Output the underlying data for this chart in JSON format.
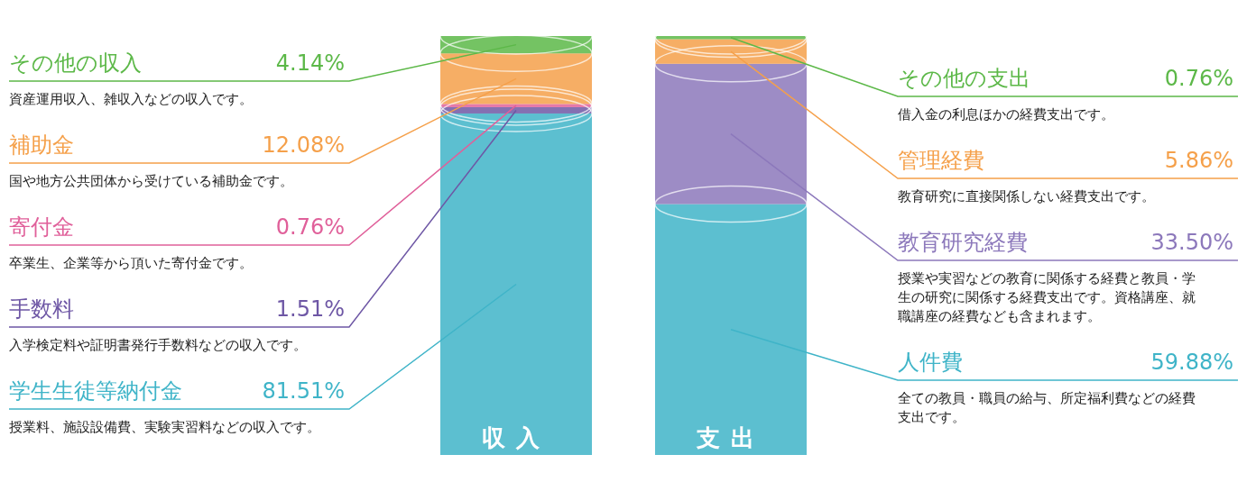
{
  "chart_data": [
    {
      "type": "bar",
      "stacked": true,
      "categories": [
        "収入"
      ],
      "legend": "left",
      "series": [
        {
          "name": "学生生徒等納付金",
          "color": "#3fb4c8",
          "values": [
            81.51
          ],
          "value_labels": [
            "81.51%"
          ]
        },
        {
          "name": "手数料",
          "color": "#6e57a5",
          "values": [
            1.51
          ],
          "value_labels": [
            "1.51%"
          ]
        },
        {
          "name": "寄付金",
          "color": "#e0609a",
          "values": [
            0.76
          ],
          "value_labels": [
            "0.76%"
          ]
        },
        {
          "name": "補助金",
          "color": "#f5a04a",
          "values": [
            12.08
          ],
          "value_labels": [
            "12.08%"
          ]
        },
        {
          "name": "その他の収入",
          "color": "#5cb848",
          "values": [
            4.14
          ],
          "value_labels": [
            "4.14%"
          ]
        }
      ],
      "annotations": [
        "資産運用収入、雑収入などの収入です。",
        "国や地方公共団体から受けている補助金です。",
        "卒業生、企業等から頂いた寄付金です。",
        "入学検定料や証明書発行手数料などの収入です。",
        "授業料、施設設備費、実験実習料などの収入です。"
      ]
    },
    {
      "type": "bar",
      "stacked": true,
      "categories": [
        "支出"
      ],
      "legend": "right",
      "series": [
        {
          "name": "人件費",
          "color": "#3fb4c8",
          "values": [
            59.88
          ],
          "value_labels": [
            "59.88%"
          ]
        },
        {
          "name": "教育研究経費",
          "color": "#8c78bb",
          "values": [
            33.5
          ],
          "value_labels": [
            "33.50%"
          ]
        },
        {
          "name": "管理経費",
          "color": "#f5a04a",
          "values": [
            5.86
          ],
          "value_labels": [
            "5.86%"
          ]
        },
        {
          "name": "その他の支出",
          "color": "#5cb848",
          "values": [
            0.76
          ],
          "value_labels": [
            "0.76%"
          ]
        }
      ],
      "annotations": [
        "借入金の利息ほかの経費支出です。",
        "教育研究に直接関係しない経費支出です。",
        "授業や実習などの教育に関係する経費と教員・学生の研究に関係する経費支出です。資格講座、就職講座の経費なども含まれます。",
        "全ての教員・職員の給与、所定福利費などの経費支出です。"
      ]
    }
  ]
}
